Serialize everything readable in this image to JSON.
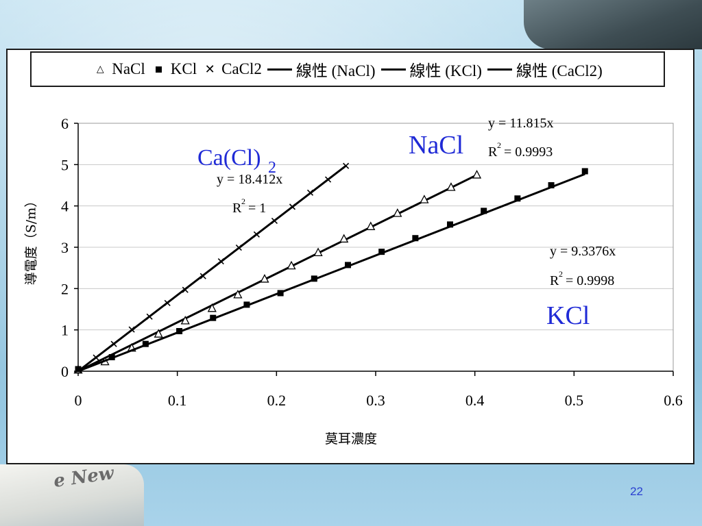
{
  "slide_number": "22",
  "legend": [
    {
      "symbol": "△",
      "label": "NaCl",
      "kind": "tri"
    },
    {
      "symbol": "■",
      "label": "KCl",
      "kind": "sq"
    },
    {
      "symbol": "✕",
      "label": "CaCl2",
      "kind": "x"
    },
    {
      "symbol": "line",
      "label": "線性 (NaCl)",
      "kind": "line"
    },
    {
      "symbol": "line",
      "label": "線性 (KCl)",
      "kind": "line"
    },
    {
      "symbol": "line",
      "label": "線性 (CaCl2)",
      "kind": "line"
    }
  ],
  "annotations": {
    "nacl_name": "NaCl",
    "kcl_name": "KCl",
    "cacl_name": "Ca(Cl)",
    "cacl_sub": "2",
    "nacl_eq": "y = 11.815x",
    "nacl_r2": "= 0.9993",
    "kcl_eq": "y = 9.3376x",
    "kcl_r2": "= 0.9998",
    "cacl_eq": "y = 18.412x",
    "cacl_r2": "= 1",
    "r_letter": "R",
    "r_sup": "2"
  },
  "colors": {
    "series_name_color": "#1f2ad6",
    "marker_color": "#000000",
    "grid_color": "#c8c8c8"
  },
  "chart_data": {
    "type": "scatter",
    "xlabel": "莫耳濃度",
    "ylabel": "導電度（S/m）",
    "xlim": [
      0,
      0.6
    ],
    "ylim": [
      0,
      6
    ],
    "x_ticks": [
      "0",
      "0.1",
      "0.2",
      "0.3",
      "0.4",
      "0.5",
      "0.6"
    ],
    "y_ticks": [
      "0",
      "1",
      "2",
      "3",
      "4",
      "5",
      "6"
    ],
    "grid": "horizontal",
    "legend_position": "top",
    "series": [
      {
        "name": "NaCl",
        "marker": "triangle",
        "points": [
          [
            0,
            0.03
          ],
          [
            0.027,
            0.23
          ],
          [
            0.054,
            0.56
          ],
          [
            0.081,
            0.9
          ],
          [
            0.108,
            1.22
          ],
          [
            0.135,
            1.52
          ],
          [
            0.161,
            1.85
          ],
          [
            0.188,
            2.23
          ],
          [
            0.215,
            2.55
          ],
          [
            0.242,
            2.87
          ],
          [
            0.268,
            3.2
          ],
          [
            0.295,
            3.5
          ],
          [
            0.322,
            3.82
          ],
          [
            0.349,
            4.15
          ],
          [
            0.376,
            4.45
          ],
          [
            0.402,
            4.75
          ]
        ],
        "fit_slope": 11.815
      },
      {
        "name": "KCl",
        "marker": "square",
        "points": [
          [
            0,
            0.05
          ],
          [
            0.034,
            0.34
          ],
          [
            0.068,
            0.66
          ],
          [
            0.102,
            0.97
          ],
          [
            0.136,
            1.29
          ],
          [
            0.17,
            1.61
          ],
          [
            0.204,
            1.89
          ],
          [
            0.238,
            2.24
          ],
          [
            0.272,
            2.57
          ],
          [
            0.306,
            2.89
          ],
          [
            0.34,
            3.22
          ],
          [
            0.375,
            3.55
          ],
          [
            0.409,
            3.88
          ],
          [
            0.443,
            4.18
          ],
          [
            0.477,
            4.5
          ],
          [
            0.511,
            4.84
          ]
        ],
        "fit_slope": 9.3376
      },
      {
        "name": "CaCl2",
        "marker": "x",
        "points": [
          [
            0,
            0.03
          ],
          [
            0.018,
            0.33
          ],
          [
            0.036,
            0.66
          ],
          [
            0.054,
            1.01
          ],
          [
            0.072,
            1.32
          ],
          [
            0.09,
            1.65
          ],
          [
            0.108,
            1.97
          ],
          [
            0.126,
            2.3
          ],
          [
            0.144,
            2.66
          ],
          [
            0.162,
            2.99
          ],
          [
            0.18,
            3.31
          ],
          [
            0.198,
            3.64
          ],
          [
            0.216,
            3.98
          ],
          [
            0.234,
            4.32
          ],
          [
            0.252,
            4.64
          ],
          [
            0.27,
            4.97
          ]
        ],
        "fit_slope": 18.412
      }
    ]
  }
}
